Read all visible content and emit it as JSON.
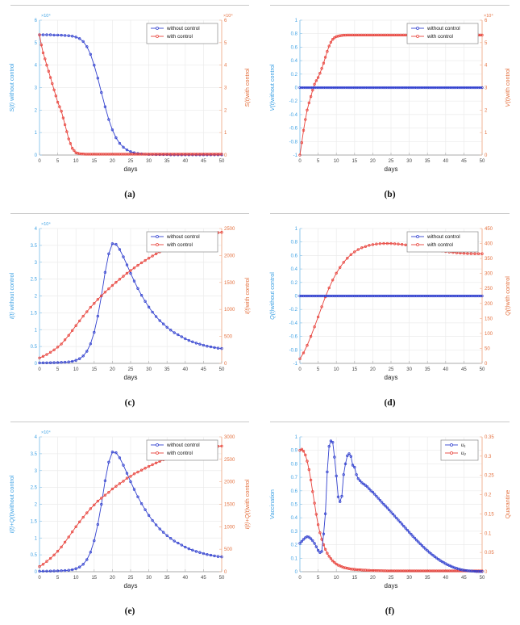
{
  "colors": {
    "blue_curve": "#3342cf",
    "red_curve": "#e8433c",
    "blue_axis_text": "#3fa2e4",
    "blue_spine": "#85c3ea",
    "orange_axis_text": "#e4703e",
    "orange_spine": "#f0ae8c",
    "grid": "#ebebeb",
    "x_text": "#454545",
    "x_spine": "#ababab",
    "legend_border": "#8a8a8a",
    "caption_text": "#111111",
    "rule": "#c9c9c9"
  },
  "chart_data": [
    {
      "id": "a",
      "type": "line",
      "caption": "(a)",
      "x": {
        "min": 0,
        "max": 50,
        "ticks": [
          0,
          5,
          10,
          15,
          20,
          25,
          30,
          35,
          40,
          45,
          50
        ],
        "label": "days"
      },
      "left": {
        "math": "S(t)",
        "rest": " without control",
        "min": 0,
        "max": 6,
        "ticks": [
          0,
          1,
          2,
          3,
          4,
          5,
          6
        ],
        "exp": "×10⁴"
      },
      "right": {
        "math": "S(t)",
        "rest": "with control",
        "min": 0,
        "max": 6,
        "ticks": [
          0,
          1,
          2,
          3,
          4,
          5,
          6
        ],
        "exp": "×10⁴"
      },
      "legend": {
        "width": 88,
        "items": [
          {
            "label": "without control",
            "color_key": "blue_curve",
            "italic": false
          },
          {
            "label": "with control",
            "color_key": "red_curve",
            "italic": false
          }
        ]
      },
      "series": [
        {
          "name": "without-control",
          "axis": "left",
          "color_key": "blue_curve",
          "x0": 0,
          "dx": 1,
          "n": 51,
          "y": [
            5.35,
            5.35,
            5.35,
            5.35,
            5.34,
            5.34,
            5.33,
            5.32,
            5.31,
            5.29,
            5.25,
            5.18,
            5.05,
            4.82,
            4.48,
            4.0,
            3.42,
            2.78,
            2.15,
            1.58,
            1.12,
            0.77,
            0.52,
            0.35,
            0.23,
            0.15,
            0.1,
            0.07,
            0.05,
            0.04,
            0.03,
            0.03,
            0.02,
            0.02,
            0.02,
            0.02,
            0.01
          ]
        },
        {
          "name": "with-control",
          "axis": "right",
          "color_key": "red_curve",
          "x0": 0,
          "dx": 0.5,
          "n": 101,
          "y": [
            5.35,
            4.9,
            4.55,
            4.28,
            4.0,
            3.73,
            3.45,
            3.18,
            2.9,
            2.63,
            2.35,
            2.15,
            1.95,
            1.65,
            1.35,
            1.04,
            0.72,
            0.51,
            0.3,
            0.2,
            0.1,
            0.08,
            0.06,
            0.05,
            0.05,
            0.04
          ]
        }
      ]
    },
    {
      "id": "b",
      "type": "line",
      "caption": "(b)",
      "x": {
        "min": 0,
        "max": 50,
        "ticks": [
          0,
          5,
          10,
          15,
          20,
          25,
          30,
          35,
          40,
          45,
          50
        ],
        "label": "days"
      },
      "left": {
        "math": "V(t)",
        "rest": "without control",
        "min": -1,
        "max": 1,
        "ticks": [
          -1,
          -0.8,
          -0.6,
          -0.4,
          -0.2,
          0,
          0.2,
          0.4,
          0.6,
          0.8,
          1
        ],
        "exp": null
      },
      "right": {
        "math": "V(t)",
        "rest": "with control",
        "min": 0,
        "max": 6,
        "ticks": [
          0,
          1,
          2,
          3,
          4,
          5,
          6
        ],
        "exp": "×10⁴"
      },
      "legend": {
        "width": 88,
        "items": [
          {
            "label": "without control",
            "color_key": "blue_curve",
            "italic": false
          },
          {
            "label": "with control",
            "color_key": "red_curve",
            "italic": false
          }
        ]
      },
      "series": [
        {
          "name": "with-control",
          "axis": "right",
          "color_key": "red_curve",
          "x0": 0,
          "dx": 0.5,
          "n": 101,
          "y": [
            0,
            0.55,
            1.1,
            1.58,
            2.0,
            2.32,
            2.6,
            2.89,
            3.15,
            3.31,
            3.45,
            3.64,
            3.85,
            4.09,
            4.35,
            4.61,
            4.85,
            5.02,
            5.15,
            5.22,
            5.27,
            5.29,
            5.31,
            5.32,
            5.33,
            5.33,
            5.34
          ]
        },
        {
          "name": "without-control",
          "axis": "left",
          "color_key": "blue_curve",
          "x0": 0,
          "dx": 0.5,
          "n": 101,
          "y": [
            0
          ]
        }
      ]
    },
    {
      "id": "c",
      "type": "line",
      "caption": "(c)",
      "x": {
        "min": 0,
        "max": 50,
        "ticks": [
          0,
          5,
          10,
          15,
          20,
          25,
          30,
          35,
          40,
          45,
          50
        ],
        "label": "days"
      },
      "left": {
        "math": "I(t)",
        "rest": " without control",
        "min": 0,
        "max": 4,
        "ticks": [
          0,
          0.5,
          1,
          1.5,
          2,
          2.5,
          3,
          3.5,
          4
        ],
        "exp": "×10⁴"
      },
      "right": {
        "math": "I(t)",
        "rest": "with control",
        "min": 0,
        "max": 2500,
        "ticks": [
          0,
          500,
          1000,
          1500,
          2000,
          2500
        ],
        "exp": null
      },
      "legend": {
        "width": 88,
        "items": [
          {
            "label": "without control",
            "color_key": "blue_curve",
            "italic": false
          },
          {
            "label": "with control",
            "color_key": "red_curve",
            "italic": false
          }
        ]
      },
      "series": [
        {
          "name": "without-control",
          "axis": "left",
          "color_key": "blue_curve",
          "x0": 0,
          "dx": 1,
          "n": 51,
          "y": [
            0.015,
            0.016,
            0.017,
            0.019,
            0.021,
            0.024,
            0.028,
            0.034,
            0.044,
            0.06,
            0.09,
            0.14,
            0.22,
            0.36,
            0.58,
            0.92,
            1.4,
            2.0,
            2.7,
            3.25,
            3.55,
            3.53,
            3.38,
            3.16,
            2.92,
            2.67,
            2.44,
            2.22,
            2.02,
            1.84,
            1.67,
            1.52,
            1.39,
            1.27,
            1.17,
            1.07,
            0.99,
            0.91,
            0.85,
            0.79,
            0.73,
            0.68,
            0.64,
            0.6,
            0.57,
            0.54,
            0.51,
            0.49,
            0.47,
            0.45,
            0.44
          ]
        },
        {
          "name": "with-control",
          "axis": "right",
          "color_key": "red_curve",
          "x0": 0,
          "dx": 1,
          "n": 51,
          "y": [
            100,
            130,
            165,
            205,
            250,
            302,
            360,
            437,
            520,
            610,
            700,
            788,
            875,
            958,
            1040,
            1113,
            1185,
            1253,
            1320,
            1383,
            1445,
            1503,
            1560,
            1616,
            1670,
            1721,
            1770,
            1818,
            1865,
            1908,
            1950,
            1991,
            2030,
            2068,
            2105,
            2141,
            2175,
            2208,
            2240,
            2268,
            2295,
            2318,
            2340,
            2358,
            2375,
            2388,
            2400,
            2410,
            2418,
            2424,
            2430
          ]
        }
      ]
    },
    {
      "id": "d",
      "type": "line",
      "caption": "(d)",
      "x": {
        "min": 0,
        "max": 50,
        "ticks": [
          0,
          5,
          10,
          15,
          20,
          25,
          30,
          35,
          40,
          45,
          50
        ],
        "label": "days"
      },
      "left": {
        "math": "Q(t)",
        "rest": "without control",
        "min": -1,
        "max": 1,
        "ticks": [
          -1,
          -0.8,
          -0.6,
          -0.4,
          -0.2,
          0,
          0.2,
          0.4,
          0.6,
          0.8,
          1
        ],
        "exp": null
      },
      "right": {
        "math": "Q(t)",
        "rest": "with control",
        "min": 0,
        "max": 450,
        "ticks": [
          0,
          50,
          100,
          150,
          200,
          250,
          300,
          350,
          400,
          450
        ],
        "exp": null
      },
      "legend": {
        "width": 88,
        "items": [
          {
            "label": "without control",
            "color_key": "blue_curve",
            "italic": false
          },
          {
            "label": "with control",
            "color_key": "red_curve",
            "italic": false
          }
        ]
      },
      "series": [
        {
          "name": "with-control",
          "axis": "right",
          "color_key": "red_curve",
          "x0": 0,
          "dx": 1,
          "n": 51,
          "y": [
            15,
            35,
            60,
            90,
            122,
            155,
            189,
            222,
            252,
            278,
            301,
            320,
            337,
            351,
            363,
            372,
            380,
            386,
            390,
            394,
            396.5,
            398.2,
            399.3,
            399.8,
            400,
            399.8,
            399.2,
            398.2,
            396.8,
            395.2,
            393.4,
            391.4,
            389.4,
            387.3,
            385.2,
            383.1,
            381,
            378.9,
            376.9,
            375,
            373.2,
            371.6,
            370.2,
            369,
            368,
            367.2,
            366.6,
            366.2,
            366,
            365.9,
            365.8
          ]
        },
        {
          "name": "without-control",
          "axis": "left",
          "color_key": "blue_curve",
          "x0": 0,
          "dx": 0.5,
          "n": 101,
          "y": [
            0
          ]
        }
      ]
    },
    {
      "id": "e",
      "type": "line",
      "caption": "(e)",
      "x": {
        "min": 0,
        "max": 50,
        "ticks": [
          0,
          5,
          10,
          15,
          20,
          25,
          30,
          35,
          40,
          45,
          50
        ],
        "label": "days"
      },
      "left": {
        "math": "I(t)+Q(t)",
        "rest": "without control",
        "min": 0,
        "max": 4,
        "ticks": [
          0,
          0.5,
          1,
          1.5,
          2,
          2.5,
          3,
          3.5,
          4
        ],
        "exp": "×10⁴"
      },
      "right": {
        "math": "I(t)+Q(t)",
        "rest": "with control",
        "min": 0,
        "max": 3000,
        "ticks": [
          0,
          500,
          1000,
          1500,
          2000,
          2500,
          3000
        ],
        "exp": null
      },
      "legend": {
        "width": 88,
        "items": [
          {
            "label": "without control",
            "color_key": "blue_curve",
            "italic": false
          },
          {
            "label": "with control",
            "color_key": "red_curve",
            "italic": false
          }
        ]
      },
      "series": [
        {
          "name": "without-control",
          "axis": "left",
          "color_key": "blue_curve",
          "x0": 0,
          "dx": 1,
          "n": 51,
          "y": [
            0.015,
            0.016,
            0.017,
            0.019,
            0.021,
            0.024,
            0.028,
            0.034,
            0.044,
            0.06,
            0.09,
            0.14,
            0.22,
            0.36,
            0.58,
            0.92,
            1.4,
            2.0,
            2.7,
            3.25,
            3.55,
            3.53,
            3.38,
            3.16,
            2.92,
            2.67,
            2.44,
            2.22,
            2.02,
            1.84,
            1.67,
            1.52,
            1.39,
            1.27,
            1.17,
            1.07,
            0.99,
            0.91,
            0.85,
            0.79,
            0.73,
            0.68,
            0.64,
            0.6,
            0.57,
            0.54,
            0.51,
            0.49,
            0.47,
            0.45,
            0.44
          ]
        },
        {
          "name": "with-control",
          "axis": "right",
          "color_key": "red_curve",
          "x0": 0,
          "dx": 1,
          "n": 51,
          "y": [
            115,
            165,
            230,
            297,
            372,
            457,
            549,
            657,
            772,
            888,
            1001,
            1108,
            1212,
            1309,
            1403,
            1485,
            1570,
            1636,
            1703,
            1766,
            1841,
            1901,
            1959,
            2014,
            2080,
            2121,
            2178,
            2216,
            2260,
            2303,
            2343,
            2382,
            2419,
            2455,
            2489,
            2524,
            2555,
            2587,
            2617,
            2643,
            2668,
            2690,
            2710,
            2727,
            2743,
            2755,
            2767,
            2776,
            2784,
            2790,
            2796
          ]
        }
      ]
    },
    {
      "id": "f",
      "type": "line",
      "caption": "(f)",
      "x": {
        "min": 0,
        "max": 50,
        "ticks": [
          0,
          5,
          10,
          15,
          20,
          25,
          30,
          35,
          40,
          45,
          50
        ],
        "label": "days"
      },
      "left": {
        "math": "",
        "rest": "Vaccination",
        "min": 0,
        "max": 1,
        "ticks": [
          0,
          0.1,
          0.2,
          0.3,
          0.4,
          0.5,
          0.6,
          0.7,
          0.8,
          0.9,
          1
        ],
        "exp": null
      },
      "right": {
        "math": "",
        "rest": "Quarantine",
        "min": 0,
        "max": 0.35,
        "ticks": [
          0,
          0.05,
          0.1,
          0.15,
          0.2,
          0.25,
          0.3,
          0.35
        ],
        "exp": null
      },
      "legend": {
        "width": 46,
        "items": [
          {
            "label": "u₁",
            "color_key": "blue_curve",
            "italic": true
          },
          {
            "label": "u₂",
            "color_key": "red_curve",
            "italic": true
          }
        ]
      },
      "series": [
        {
          "name": "u2",
          "axis": "right",
          "color_key": "red_curve",
          "x0": 0,
          "dx": 0.5,
          "n": 101,
          "y": [
            0.315,
            0.318,
            0.313,
            0.303,
            0.287,
            0.265,
            0.238,
            0.208,
            0.178,
            0.149,
            0.122,
            0.101,
            0.084,
            0.07,
            0.058,
            0.048,
            0.04,
            0.034,
            0.028,
            0.024,
            0.02,
            0.017,
            0.015,
            0.013,
            0.011,
            0.01,
            0.009,
            0.008,
            0.007,
            0.0065,
            0.006,
            0.0055,
            0.005,
            0.005,
            0.0045,
            0.004,
            0.004,
            0.0035,
            0.0035,
            0.003,
            0.003,
            0.003,
            0.0028,
            0.0027,
            0.0026,
            0.0025,
            0.0024,
            0.0023,
            0.0022,
            0.0021,
            0.002
          ]
        },
        {
          "name": "u1",
          "axis": "left",
          "color_key": "blue_curve",
          "x0": 0,
          "dx": 0.5,
          "n": 101,
          "y": [
            0.21,
            0.225,
            0.24,
            0.252,
            0.26,
            0.256,
            0.245,
            0.23,
            0.21,
            0.185,
            0.158,
            0.142,
            0.15,
            0.28,
            0.43,
            0.74,
            0.93,
            0.97,
            0.96,
            0.85,
            0.71,
            0.555,
            0.52,
            0.56,
            0.72,
            0.8,
            0.86,
            0.875,
            0.855,
            0.79,
            0.775,
            0.72,
            0.69,
            0.675,
            0.66,
            0.65,
            0.64,
            0.63,
            0.615,
            0.6,
            0.59,
            0.575,
            0.56,
            0.545,
            0.53,
            0.515,
            0.5,
            0.487,
            0.473,
            0.458,
            0.443,
            0.428,
            0.413,
            0.398,
            0.383,
            0.368,
            0.353,
            0.338,
            0.323,
            0.308,
            0.293,
            0.278,
            0.263,
            0.249,
            0.235,
            0.221,
            0.207,
            0.194,
            0.181,
            0.168,
            0.156,
            0.144,
            0.133,
            0.122,
            0.112,
            0.102,
            0.092,
            0.083,
            0.075,
            0.067,
            0.059,
            0.052,
            0.046,
            0.04,
            0.034,
            0.029,
            0.025,
            0.021,
            0.017,
            0.014,
            0.011,
            0.009,
            0.007,
            0.006,
            0.005,
            0.004,
            0.003,
            0.002,
            0.002,
            0.001,
            0.001
          ]
        }
      ]
    }
  ]
}
